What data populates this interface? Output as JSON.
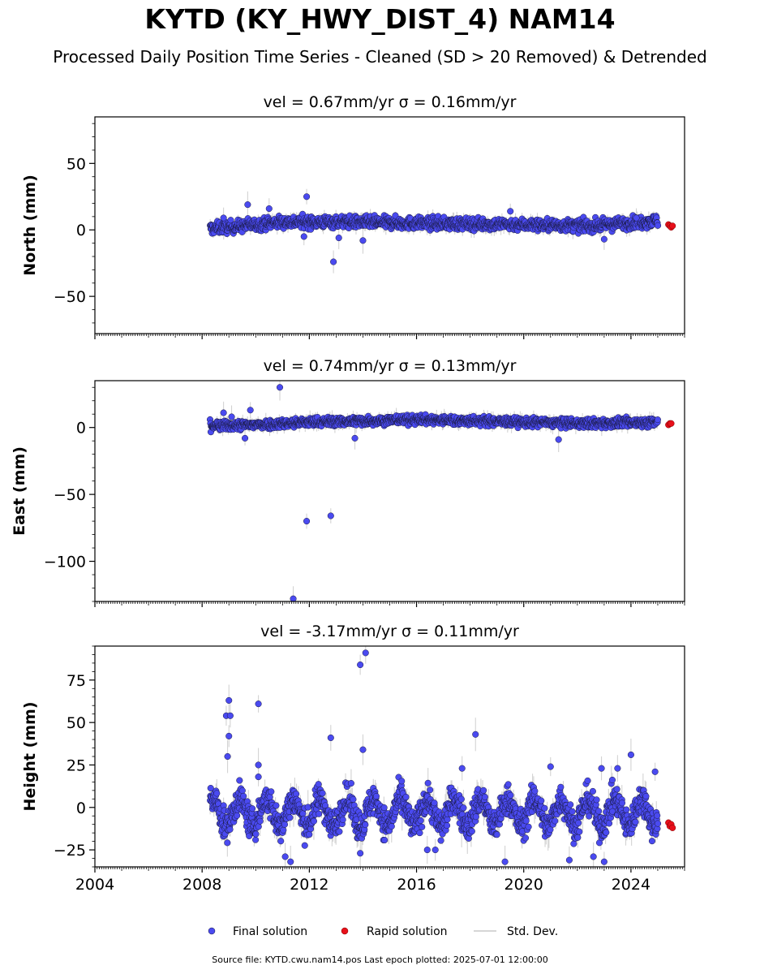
{
  "figure": {
    "title": "KYTD (KY_HWY_DIST_4) NAM14",
    "subtitle": "Processed Daily Position Time Series - Cleaned (SD > 20 Removed) & Detrended",
    "footer": "Source file: KYTD.cwu.nam14.pos  Last epoch plotted: 2025-07-01 12:00:00"
  },
  "legend": {
    "final_label": "Final solution",
    "rapid_label": "Rapid solution",
    "std_label": "Std. Dev."
  },
  "colors": {
    "final": "#4a4af0",
    "final_edge": "#1a1a40",
    "rapid": "#e8101a",
    "std": "#c8c8c8"
  },
  "chart_data": [
    {
      "type": "scatter",
      "panel": "north",
      "title": "vel = 0.67mm/yr   σ = 0.16mm/yr",
      "ylabel": "North (mm)",
      "xlabel": "",
      "xlim": [
        2004,
        2026
      ],
      "ylim": [
        -78,
        85
      ],
      "x_ticks": [
        "2004",
        "2008",
        "2012",
        "2016",
        "2020",
        "2024"
      ],
      "y_ticks": [
        "50",
        "0",
        "−50"
      ],
      "y_tick_values": [
        50,
        0,
        -50
      ],
      "series": [
        {
          "name": "Final solution",
          "description": "continuous daily solutions 2008.3 to 2025.0, about 0 to 8 mm, detrended",
          "x_range": [
            2008.3,
            2025.0
          ],
          "band_center": [
            [
              2008.3,
              1
            ],
            [
              2009.5,
              3
            ],
            [
              2011.0,
              6
            ],
            [
              2013.0,
              6
            ],
            [
              2016.0,
              5
            ],
            [
              2020.0,
              4
            ],
            [
              2022.5,
              3
            ],
            [
              2025.0,
              7
            ]
          ],
          "band_spread": 4,
          "outliers": [
            [
              2008.8,
              9
            ],
            [
              2009.7,
              19
            ],
            [
              2010.5,
              16
            ],
            [
              2011.9,
              25
            ],
            [
              2011.8,
              -5
            ],
            [
              2012.9,
              -24
            ],
            [
              2013.1,
              -6
            ],
            [
              2014.0,
              -8
            ],
            [
              2019.5,
              14
            ],
            [
              2023.0,
              -7
            ],
            [
              2024.2,
              9
            ]
          ]
        },
        {
          "name": "Rapid solution",
          "points": [
            [
              2025.4,
              4
            ],
            [
              2025.45,
              3
            ],
            [
              2025.5,
              2
            ],
            [
              2025.55,
              3
            ]
          ]
        }
      ]
    },
    {
      "type": "scatter",
      "panel": "east",
      "title": "vel = 0.74mm/yr   σ = 0.13mm/yr",
      "ylabel": "East (mm)",
      "xlabel": "",
      "xlim": [
        2004,
        2026
      ],
      "ylim": [
        -130,
        35
      ],
      "x_ticks": [
        "2004",
        "2008",
        "2012",
        "2016",
        "2020",
        "2024"
      ],
      "y_ticks": [
        "0",
        "−50",
        "−100"
      ],
      "y_tick_values": [
        0,
        -50,
        -100
      ],
      "series": [
        {
          "name": "Final solution",
          "description": "continuous daily solutions 2008.3 to 2025.0, about 0 to 8 mm",
          "x_range": [
            2008.3,
            2025.0
          ],
          "band_center": [
            [
              2008.3,
              1
            ],
            [
              2010.0,
              2
            ],
            [
              2012.0,
              4
            ],
            [
              2014.0,
              5
            ],
            [
              2016.0,
              6
            ],
            [
              2018.0,
              5
            ],
            [
              2020.0,
              4
            ],
            [
              2022.0,
              3
            ],
            [
              2025.0,
              4
            ]
          ],
          "band_spread": 3,
          "outliers": [
            [
              2008.8,
              11
            ],
            [
              2009.1,
              8
            ],
            [
              2009.8,
              13
            ],
            [
              2010.9,
              30
            ],
            [
              2011.9,
              -70
            ],
            [
              2012.8,
              -66
            ],
            [
              2011.4,
              -128
            ],
            [
              2013.7,
              -8
            ],
            [
              2021.3,
              -9
            ],
            [
              2009.6,
              -8
            ]
          ]
        },
        {
          "name": "Rapid solution",
          "points": [
            [
              2025.4,
              2
            ],
            [
              2025.45,
              3
            ],
            [
              2025.5,
              3
            ]
          ]
        }
      ]
    },
    {
      "type": "scatter",
      "panel": "height",
      "title": "vel = -3.17mm/yr   σ = 0.11mm/yr",
      "ylabel": "Height (mm)",
      "xlabel": "",
      "xlim": [
        2004,
        2026
      ],
      "ylim": [
        -35,
        95
      ],
      "x_ticks": [
        "2004",
        "2008",
        "2012",
        "2016",
        "2020",
        "2024"
      ],
      "y_ticks": [
        "75",
        "50",
        "25",
        "0",
        "−25"
      ],
      "y_tick_values": [
        75,
        50,
        25,
        0,
        -25
      ],
      "series": [
        {
          "name": "Final solution",
          "description": "continuous daily solutions 2008.3 to 2025.0 with annual oscillation of roughly ±10 mm about 0",
          "x_range": [
            2008.3,
            2025.0
          ],
          "annual_amplitude": 8,
          "band_spread": 8,
          "outliers": [
            [
              2008.9,
              54
            ],
            [
              2009.0,
              63
            ],
            [
              2009.0,
              42
            ],
            [
              2009.05,
              54
            ],
            [
              2008.95,
              30
            ],
            [
              2010.1,
              61
            ],
            [
              2010.1,
              25
            ],
            [
              2010.1,
              18
            ],
            [
              2012.8,
              41
            ],
            [
              2013.9,
              84
            ],
            [
              2014.0,
              34
            ],
            [
              2014.1,
              91
            ],
            [
              2018.2,
              43
            ],
            [
              2017.7,
              23
            ],
            [
              2021.0,
              24
            ],
            [
              2022.9,
              23
            ],
            [
              2023.5,
              23
            ],
            [
              2024.0,
              31
            ],
            [
              2024.9,
              21
            ],
            [
              2011.1,
              -29
            ],
            [
              2011.3,
              -32
            ],
            [
              2013.9,
              -27
            ],
            [
              2016.4,
              -25
            ],
            [
              2016.7,
              -25
            ],
            [
              2019.3,
              -32
            ],
            [
              2021.7,
              -31
            ],
            [
              2022.6,
              -29
            ],
            [
              2023.0,
              -32
            ]
          ]
        },
        {
          "name": "Rapid solution",
          "points": [
            [
              2025.4,
              -9
            ],
            [
              2025.45,
              -11
            ],
            [
              2025.5,
              -10
            ],
            [
              2025.55,
              -12
            ]
          ]
        }
      ]
    }
  ]
}
